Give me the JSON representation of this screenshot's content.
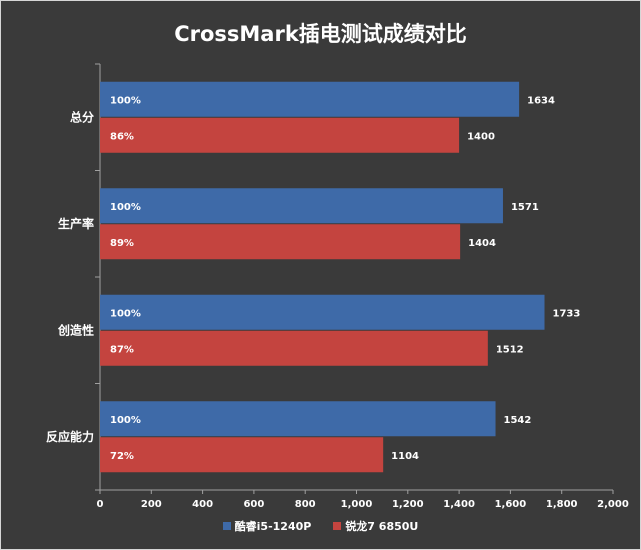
{
  "chart_data": {
    "type": "bar",
    "orientation": "horizontal",
    "title": "CrossMark插电测试成绩对比",
    "categories": [
      "总分",
      "生产率",
      "创造性",
      "反应能力"
    ],
    "series": [
      {
        "name": "酷睿i5-1240P",
        "color": "#3e6aa8",
        "values": [
          1634,
          1571,
          1733,
          1542
        ],
        "percent_labels": [
          "100%",
          "100%",
          "100%",
          "100%"
        ]
      },
      {
        "name": "锐龙7 6850U",
        "color": "#c4443f",
        "values": [
          1400,
          1404,
          1512,
          1104
        ],
        "percent_labels": [
          "86%",
          "89%",
          "87%",
          "72%"
        ]
      }
    ],
    "xlim": [
      0,
      2000
    ],
    "xticks": [
      0,
      200,
      400,
      600,
      800,
      1000,
      1200,
      1400,
      1600,
      1800,
      2000
    ],
    "xtick_labels": [
      "0",
      "200",
      "400",
      "600",
      "800",
      "1,000",
      "1,200",
      "1,400",
      "1,600",
      "1,800",
      "2,000"
    ],
    "grid": false,
    "legend_position": "bottom",
    "background_color": "#3a3a3a",
    "text_color": "#ffffff"
  }
}
